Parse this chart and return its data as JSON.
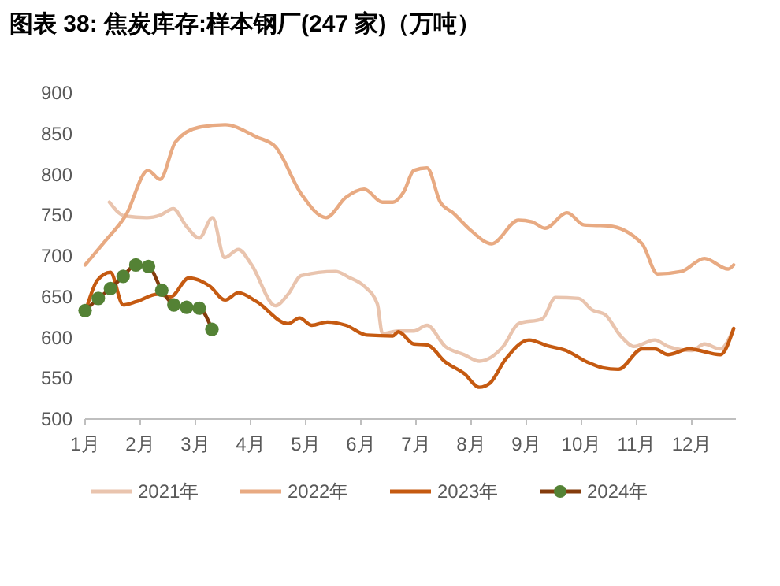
{
  "chart_data": {
    "type": "line",
    "title": "图表 38:  焦炭库存:样本钢厂(247 家)（万吨）",
    "xlim": [
      1,
      12.8
    ],
    "xticks": [
      {
        "value": 1,
        "label": "1月"
      },
      {
        "value": 2,
        "label": "2月"
      },
      {
        "value": 3,
        "label": "3月"
      },
      {
        "value": 4,
        "label": "4月"
      },
      {
        "value": 5,
        "label": "5月"
      },
      {
        "value": 6,
        "label": "6月"
      },
      {
        "value": 7,
        "label": "7月"
      },
      {
        "value": 8,
        "label": "8月"
      },
      {
        "value": 9,
        "label": "9月"
      },
      {
        "value": 10,
        "label": "10月"
      },
      {
        "value": 11,
        "label": "11月"
      },
      {
        "value": 12,
        "label": "12月"
      }
    ],
    "ylim": [
      500,
      900
    ],
    "yticks": [
      500,
      550,
      600,
      650,
      700,
      750,
      800,
      850,
      900
    ],
    "grid": false,
    "legend": "bottom",
    "line_style": "solid",
    "series": [
      {
        "name": "2021年",
        "color": "#e9c4ae",
        "marker": "none",
        "x": [
          1.44,
          1.72,
          2.12,
          2.36,
          2.6,
          2.83,
          3.07,
          3.31,
          3.53,
          3.78,
          4.02,
          4.45,
          4.68,
          4.92,
          5.54,
          5.78,
          6.06,
          6.3,
          6.39,
          6.68,
          6.96,
          7.2,
          7.53,
          7.87,
          8.15,
          8.58,
          8.86,
          9.29,
          9.53,
          9.95,
          10.19,
          10.43,
          10.71,
          10.95,
          11.33,
          11.57,
          12.0,
          12.23,
          12.52,
          12.76
        ],
        "values": [
          766,
          749,
          747,
          750,
          758,
          737,
          722,
          747,
          698,
          708,
          689,
          639,
          653,
          676,
          681,
          674,
          663,
          641,
          605,
          608,
          608,
          615,
          589,
          579,
          571,
          589,
          617,
          623,
          649,
          648,
          634,
          628,
          602,
          589,
          597,
          589,
          584,
          592,
          586,
          611
        ]
      },
      {
        "name": "2022年",
        "color": "#e8aa82",
        "marker": "none",
        "x": [
          1.0,
          1.36,
          1.74,
          2.14,
          2.36,
          2.64,
          3.07,
          3.54,
          4.11,
          4.45,
          4.92,
          5.37,
          5.73,
          6.06,
          6.39,
          6.58,
          6.78,
          6.96,
          7.2,
          7.44,
          7.67,
          8.0,
          8.37,
          8.86,
          9.1,
          9.34,
          9.74,
          10.05,
          10.48,
          11.1,
          11.38,
          11.81,
          12.23,
          12.66,
          12.76
        ],
        "values": [
          689,
          718,
          750,
          805,
          794,
          840,
          858,
          861,
          846,
          834,
          776,
          747,
          772,
          782,
          766,
          766,
          779,
          805,
          808,
          766,
          753,
          731,
          715,
          744,
          742,
          734,
          753,
          738,
          737,
          715,
          678,
          681,
          697,
          684,
          689
        ]
      },
      {
        "name": "2023年",
        "color": "#c55a11",
        "marker": "none",
        "x": [
          1.03,
          1.22,
          1.46,
          1.69,
          1.93,
          2.31,
          2.55,
          2.88,
          3.26,
          3.54,
          3.78,
          4.11,
          4.68,
          4.89,
          5.11,
          5.39,
          5.73,
          6.11,
          6.58,
          6.68,
          6.96,
          7.2,
          7.53,
          7.87,
          8.15,
          8.34,
          8.62,
          9.05,
          9.38,
          9.72,
          10.1,
          10.38,
          10.67,
          11.1,
          11.33,
          11.57,
          11.95,
          12.52,
          12.76
        ],
        "values": [
          637,
          670,
          680,
          640,
          644,
          653,
          650,
          673,
          663,
          646,
          655,
          644,
          617,
          624,
          615,
          619,
          615,
          603,
          602,
          607,
          592,
          591,
          570,
          556,
          539,
          544,
          573,
          597,
          590,
          584,
          570,
          563,
          561,
          586,
          586,
          579,
          586,
          579,
          611
        ]
      },
      {
        "name": "2024年",
        "color": "#843c0c",
        "marker": "circle",
        "colors": [
          "#548235",
          "#548235",
          "#548235",
          "#548235",
          "#548235",
          "#548235",
          "#548235",
          "#548235",
          "#548235",
          "#548235",
          "#548235"
        ],
        "x": [
          1.0,
          1.24,
          1.46,
          1.69,
          1.92,
          2.15,
          2.39,
          2.61,
          2.84,
          3.07,
          3.3
        ],
        "values": [
          633,
          648,
          660,
          675,
          689,
          687,
          658,
          640,
          637,
          636,
          610
        ]
      }
    ]
  }
}
